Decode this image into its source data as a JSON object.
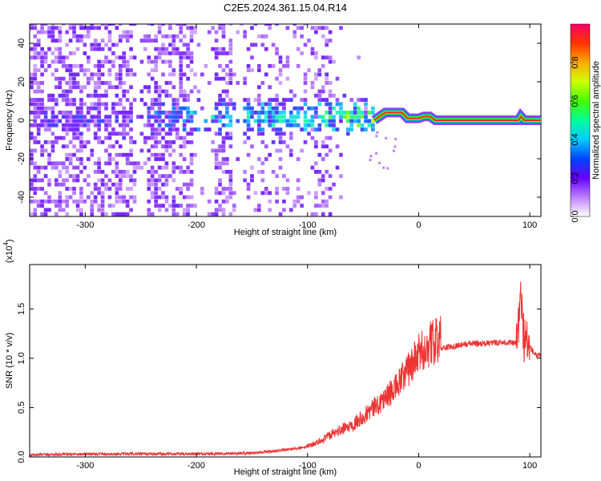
{
  "title": "C2E5.2024.361.15.04.R14",
  "chart_data": [
    {
      "type": "heatmap",
      "xlabel": "Height of straight line (km)",
      "ylabel": "Frequency (Hz)",
      "xlim": [
        -350,
        110
      ],
      "ylim": [
        -50,
        50
      ],
      "x_ticks": [
        -300,
        -200,
        -100,
        0,
        100
      ],
      "x_tick_labels": [
        "-300",
        "-200",
        "-100",
        "0",
        "100"
      ],
      "y_ticks": [
        -40,
        -20,
        0,
        20,
        40
      ],
      "y_tick_labels": [
        "-40",
        "-20",
        "0",
        "20",
        "40"
      ],
      "colorbar": {
        "label": "Normalized spectral amplitude",
        "range": [
          0,
          1
        ],
        "ticks": [
          0.0,
          0.2,
          0.4,
          0.6,
          0.8
        ],
        "tick_labels": [
          "0.0",
          "0.2",
          "0.4",
          "0.6",
          "0.8"
        ]
      },
      "description_points": {
        "noise_region_x": [
          -350,
          -40
        ],
        "signal_line": [
          {
            "x": -40,
            "f": 0
          },
          {
            "x": -35,
            "f": 2
          },
          {
            "x": -30,
            "f": 4
          },
          {
            "x": -15,
            "f": 4
          },
          {
            "x": -10,
            "f": 1
          },
          {
            "x": 0,
            "f": 1
          },
          {
            "x": 5,
            "f": 2
          },
          {
            "x": 10,
            "f": 2
          },
          {
            "x": 15,
            "f": 0
          },
          {
            "x": 90,
            "f": 0
          },
          {
            "x": 92,
            "f": 2
          },
          {
            "x": 95,
            "f": 0
          },
          {
            "x": 110,
            "f": 0
          }
        ]
      }
    },
    {
      "type": "line",
      "xlabel": "Height of straight line (km)",
      "ylabel": "SNR (10 * v/v)",
      "y_scale_label": "(x10",
      "y_scale_exp": "4",
      "y_scale_close": ")",
      "xlim": [
        -350,
        110
      ],
      "ylim": [
        0,
        1.95
      ],
      "x_ticks": [
        -300,
        -200,
        -100,
        0,
        100
      ],
      "x_tick_labels": [
        "-300",
        "-200",
        "-100",
        "0",
        "100"
      ],
      "y_ticks": [
        0.0,
        0.5,
        1.0,
        1.5
      ],
      "y_tick_labels": [
        "0.0",
        "0.5",
        "1.0",
        "1.5"
      ],
      "series": [
        {
          "color": "#ee3333",
          "x": [
            -350,
            -300,
            -250,
            -200,
            -150,
            -120,
            -100,
            -90,
            -80,
            -70,
            -60,
            -50,
            -40,
            -30,
            -20,
            -10,
            0,
            10,
            20,
            30,
            40,
            50,
            60,
            70,
            80,
            88,
            92,
            95,
            100,
            105,
            110
          ],
          "y": [
            0.02,
            0.03,
            0.03,
            0.03,
            0.04,
            0.07,
            0.1,
            0.14,
            0.2,
            0.25,
            0.3,
            0.38,
            0.46,
            0.55,
            0.65,
            0.8,
            0.95,
            1.05,
            1.1,
            1.12,
            1.14,
            1.15,
            1.15,
            1.16,
            1.16,
            1.15,
            1.6,
            1.2,
            1.12,
            1.03,
            1.02
          ]
        }
      ]
    }
  ]
}
